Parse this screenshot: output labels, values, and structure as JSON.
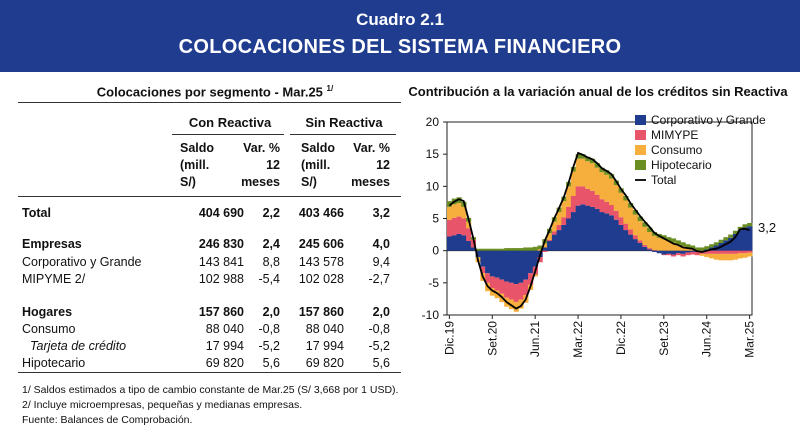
{
  "header": {
    "label": "Cuadro 2.1",
    "title": "COLOCACIONES DEL SISTEMA FINANCIERO"
  },
  "table": {
    "title": "Colocaciones por segmento - Mar.25",
    "title_note": "1/",
    "groups": [
      "Con Reactiva",
      "Sin Reactiva"
    ],
    "col_saldo": [
      "Saldo",
      "(mill.",
      "S/)"
    ],
    "col_var": [
      "Var. %",
      "12",
      "meses"
    ],
    "rows": [
      {
        "label": "Total",
        "cr_saldo": "404 690",
        "cr_var": "2,2",
        "sr_saldo": "403 466",
        "sr_var": "3,2",
        "style": "bold"
      },
      {
        "label": "Empresas",
        "cr_saldo": "246 830",
        "cr_var": "2,4",
        "sr_saldo": "245 606",
        "sr_var": "4,0",
        "style": "bold"
      },
      {
        "label": "Corporativo y Grande",
        "cr_saldo": "143 841",
        "cr_var": "8,8",
        "sr_saldo": "143 578",
        "sr_var": "9,4",
        "style": "normal"
      },
      {
        "label": "MIPYME 2/",
        "cr_saldo": "102 988",
        "cr_var": "-5,4",
        "sr_saldo": "102 028",
        "sr_var": "-2,7",
        "style": "normal"
      },
      {
        "label": "Hogares",
        "cr_saldo": "157 860",
        "cr_var": "2,0",
        "sr_saldo": "157 860",
        "sr_var": "2,0",
        "style": "bold"
      },
      {
        "label": "Consumo",
        "cr_saldo": "88 040",
        "cr_var": "-0,8",
        "sr_saldo": "88 040",
        "sr_var": "-0,8",
        "style": "normal"
      },
      {
        "label": "Tarjeta de crédito",
        "cr_saldo": "17 994",
        "cr_var": "-5,2",
        "sr_saldo": "17 994",
        "sr_var": "-5,2",
        "style": "italic"
      },
      {
        "label": "Hipotecario",
        "cr_saldo": "69 820",
        "cr_var": "5,6",
        "sr_saldo": "69 820",
        "sr_var": "5,6",
        "style": "normal"
      }
    ],
    "footnotes": [
      "1/ Saldos estimados a tipo de cambio constante de Mar.25 (S/ 3,668 por 1 USD).",
      "2/ Incluye microempresas, pequeñas y medianas empresas.",
      "Fuente: Balances de Comprobación."
    ]
  },
  "chart_data": {
    "type": "area",
    "title": "Contribución a la variación anual de los créditos sin Reactiva",
    "stacked": true,
    "ylim": [
      -10,
      20
    ],
    "yticks": [
      -10,
      -5,
      0,
      5,
      10,
      15,
      20
    ],
    "xtick_labels": [
      "Dic.19",
      "Set.20",
      "Jun.21",
      "Mar.22",
      "Dic.22",
      "Set.23",
      "Jun.24",
      "Mar.25"
    ],
    "xtick_index": [
      0,
      9,
      18,
      27,
      36,
      45,
      54,
      63
    ],
    "last_value_label": "3,2",
    "legend_position": "top-right",
    "colors": {
      "corp": "#1f3c8f",
      "mipyme": "#e8546a",
      "consumo": "#f6ae3c",
      "hipotecario": "#6b8e23",
      "total": "#000000",
      "reactiva": "#56c8ec"
    },
    "x": [
      "Dic.19",
      "Ene.20",
      "Feb.20",
      "Mar.20",
      "Abr.20",
      "May.20",
      "Jun.20",
      "Jul.20",
      "Ago.20",
      "Set.20",
      "Oct.20",
      "Nov.20",
      "Dic.20",
      "Ene.21",
      "Feb.21",
      "Mar.21",
      "Abr.21",
      "May.21",
      "Jun.21",
      "Jul.21",
      "Ago.21",
      "Set.21",
      "Oct.21",
      "Nov.21",
      "Dic.21",
      "Ene.22",
      "Feb.22",
      "Mar.22",
      "Abr.22",
      "May.22",
      "Jun.22",
      "Jul.22",
      "Ago.22",
      "Set.22",
      "Oct.22",
      "Nov.22",
      "Dic.22",
      "Ene.23",
      "Feb.23",
      "Mar.23",
      "Abr.23",
      "May.23",
      "Jun.23",
      "Jul.23",
      "Ago.23",
      "Set.23",
      "Oct.23",
      "Nov.23",
      "Dic.23",
      "Ene.24",
      "Feb.24",
      "Mar.24",
      "Abr.24",
      "May.24",
      "Jun.24",
      "Jul.24",
      "Ago.24",
      "Set.24",
      "Oct.24",
      "Nov.24",
      "Dic.24",
      "Ene.25",
      "Feb.25",
      "Mar.25"
    ],
    "series": [
      {
        "name": "Corporativo y Grande",
        "key": "corp",
        "values": [
          2.2,
          2.4,
          2.6,
          2.4,
          1.5,
          0.5,
          -1.0,
          -2.5,
          -3.5,
          -4.0,
          -4.2,
          -4.5,
          -4.8,
          -5.0,
          -5.2,
          -5.0,
          -4.5,
          -3.5,
          -2.5,
          -1.0,
          0.5,
          1.5,
          2.5,
          3.2,
          4.0,
          5.0,
          6.0,
          7.0,
          7.2,
          7.0,
          6.8,
          6.5,
          6.0,
          5.8,
          5.5,
          4.8,
          4.0,
          3.2,
          2.5,
          1.8,
          1.2,
          0.6,
          0.2,
          -0.2,
          -0.4,
          -0.6,
          -0.5,
          -0.6,
          -0.4,
          -0.5,
          -0.3,
          -0.2,
          -0.2,
          0.0,
          0.2,
          0.5,
          0.8,
          1.2,
          1.6,
          2.0,
          2.6,
          3.2,
          3.6,
          3.8
        ]
      },
      {
        "name": "MIMYPE",
        "key": "mipyme",
        "values": [
          2.6,
          2.7,
          2.7,
          2.6,
          2.0,
          1.2,
          0.0,
          -1.0,
          -1.5,
          -1.8,
          -2.0,
          -2.2,
          -2.5,
          -2.6,
          -2.8,
          -2.6,
          -2.4,
          -1.8,
          -1.2,
          -0.8,
          -0.2,
          0.2,
          0.5,
          0.8,
          1.2,
          1.8,
          2.5,
          3.0,
          2.8,
          2.6,
          2.5,
          2.2,
          2.0,
          1.8,
          1.6,
          1.4,
          1.2,
          1.0,
          0.8,
          0.6,
          0.4,
          0.3,
          0.2,
          0.1,
          0.0,
          -0.1,
          -0.2,
          -0.3,
          -0.3,
          -0.4,
          -0.4,
          -0.4,
          -0.5,
          -0.5,
          -0.5,
          -0.5,
          -0.5,
          -0.5,
          -0.5,
          -0.5,
          -0.5,
          -0.4,
          -0.4,
          -0.3
        ]
      },
      {
        "name": "Consumo",
        "key": "consumo",
        "values": [
          2.0,
          2.1,
          2.1,
          1.8,
          1.0,
          0.0,
          -0.8,
          -1.2,
          -1.3,
          -1.2,
          -1.2,
          -1.3,
          -1.4,
          -1.5,
          -1.5,
          -1.4,
          -1.2,
          -0.8,
          -0.3,
          0.2,
          0.6,
          1.0,
          1.5,
          2.0,
          2.5,
          3.2,
          3.8,
          4.3,
          4.3,
          4.3,
          4.3,
          4.2,
          4.2,
          4.2,
          4.1,
          4.0,
          3.8,
          3.6,
          3.4,
          3.2,
          3.0,
          2.8,
          2.5,
          2.2,
          2.0,
          1.8,
          1.5,
          1.3,
          1.0,
          0.7,
          0.4,
          0.2,
          0.0,
          -0.3,
          -0.5,
          -0.7,
          -0.9,
          -1.0,
          -1.0,
          -1.0,
          -0.9,
          -0.8,
          -0.7,
          -0.6
        ]
      },
      {
        "name": "Hipotecario",
        "key": "hipotecario",
        "values": [
          0.9,
          0.9,
          0.9,
          0.8,
          0.6,
          0.4,
          0.3,
          0.3,
          0.3,
          0.3,
          0.3,
          0.3,
          0.4,
          0.4,
          0.4,
          0.4,
          0.5,
          0.5,
          0.6,
          0.6,
          0.7,
          0.7,
          0.7,
          0.7,
          0.7,
          0.7,
          0.7,
          0.7,
          0.7,
          0.7,
          0.7,
          0.7,
          0.7,
          0.7,
          0.7,
          0.7,
          0.7,
          0.7,
          0.7,
          0.7,
          0.7,
          0.7,
          0.7,
          0.6,
          0.6,
          0.6,
          0.6,
          0.6,
          0.6,
          0.6,
          0.6,
          0.6,
          0.5,
          0.5,
          0.5,
          0.5,
          0.5,
          0.5,
          0.5,
          0.5,
          0.5,
          0.5,
          0.5,
          0.5
        ]
      }
    ],
    "total": {
      "name": "Total",
      "values": [
        7.0,
        7.6,
        8.0,
        7.7,
        5.0,
        2.0,
        -1.5,
        -4.0,
        -5.5,
        -6.2,
        -6.6,
        -7.2,
        -8.0,
        -8.5,
        -9.0,
        -8.6,
        -7.6,
        -5.6,
        -3.2,
        -0.8,
        1.5,
        3.2,
        5.0,
        6.6,
        8.3,
        10.5,
        13.0,
        15.2,
        14.9,
        14.5,
        14.2,
        13.6,
        12.8,
        12.4,
        11.9,
        10.8,
        9.6,
        8.6,
        7.4,
        6.4,
        5.4,
        4.5,
        3.7,
        2.8,
        2.3,
        1.9,
        1.5,
        1.1,
        0.9,
        0.5,
        0.4,
        0.3,
        -0.1,
        -0.2,
        0.0,
        0.2,
        0.3,
        0.6,
        1.0,
        1.4,
        2.1,
        3.3,
        3.4,
        3.2
      ]
    }
  }
}
